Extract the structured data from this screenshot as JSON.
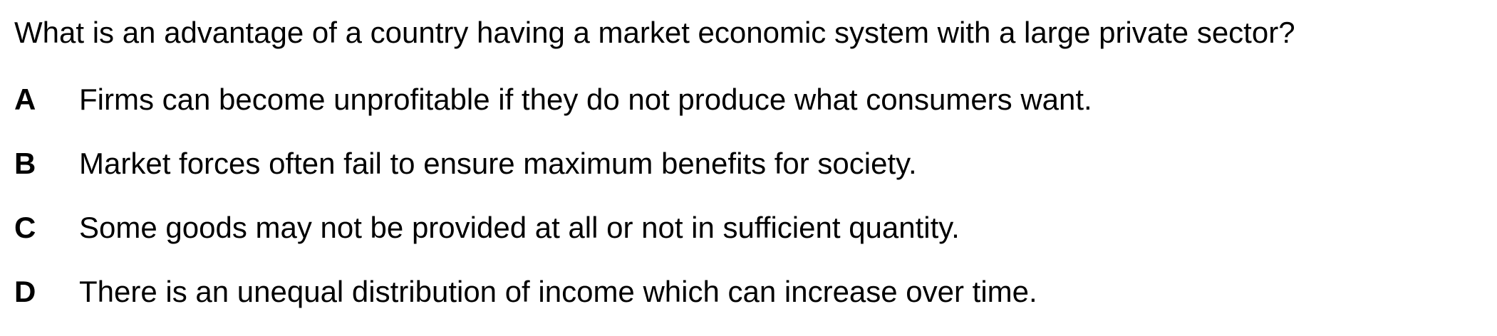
{
  "question": {
    "text": "What is an advantage of a country having a market economic system with a large private sector?"
  },
  "options": [
    {
      "letter": "A",
      "text": "Firms can become unprofitable if they do not produce what consumers want."
    },
    {
      "letter": "B",
      "text": "Market forces often fail to ensure maximum benefits for society."
    },
    {
      "letter": "C",
      "text": "Some goods may not be provided at all or not in sufficient quantity."
    },
    {
      "letter": "D",
      "text": "There is an unequal distribution of income which can increase over time."
    }
  ]
}
